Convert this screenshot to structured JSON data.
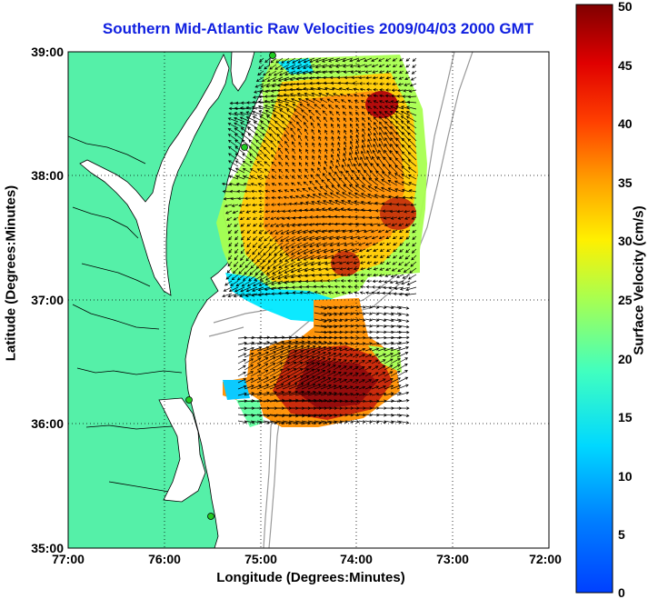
{
  "title": "Southern Mid-Atlantic Raw Velocities 2009/04/03 2000 GMT",
  "axes": {
    "xlabel": "Longitude (Degrees:Minutes)",
    "ylabel": "Latitude (Degrees:Minutes)",
    "x_ticks": [
      "77:00",
      "76:00",
      "75:00",
      "74:00",
      "73:00",
      "72:00"
    ],
    "y_ticks": [
      "39:00",
      "38:00",
      "37:00",
      "36:00",
      "35:00"
    ],
    "x_range_deg_west": [
      77,
      72
    ],
    "y_range_deg_north": [
      35,
      39
    ],
    "grid": "dotted"
  },
  "colorbar": {
    "label": "Surface Velocity (cm/s)",
    "ticks": [
      "50",
      "45",
      "40",
      "35",
      "30",
      "25",
      "20",
      "15",
      "10",
      "5",
      "0"
    ],
    "range": [
      0,
      50
    ],
    "colormap": "jet"
  },
  "colors": {
    "land": "#55f0a8",
    "water": "#ffffff",
    "bathymetry": "#999999",
    "title": "#1020e0",
    "station_marker": "#22cc22"
  }
}
